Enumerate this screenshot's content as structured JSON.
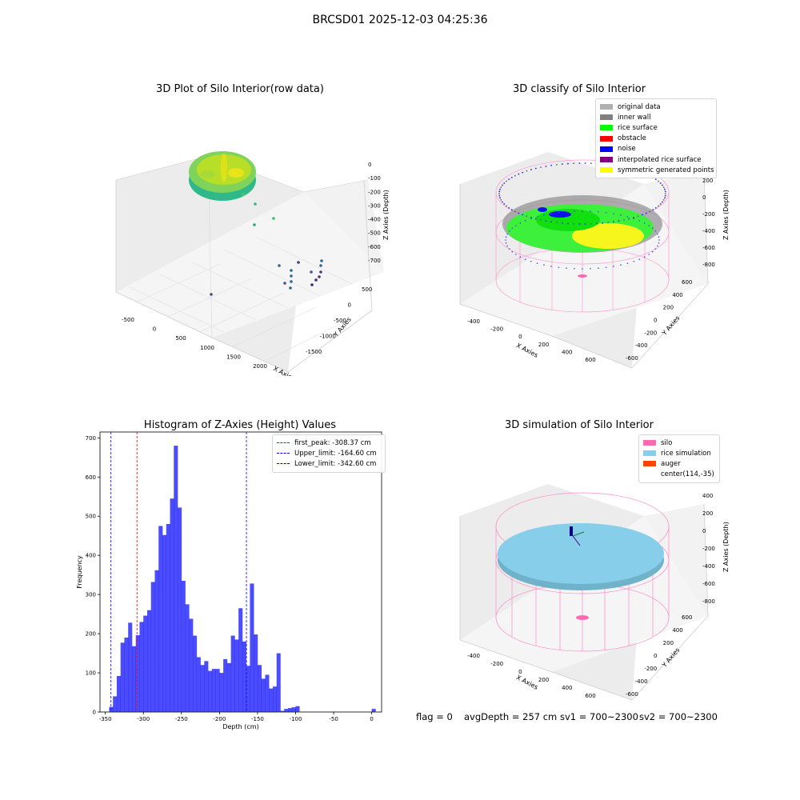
{
  "figure": {
    "suptitle": "BRCSD01 2025-12-03 04:25:36"
  },
  "panels": {
    "raw": {
      "title": "3D Plot of Silo Interior(row data)",
      "xlabel": "X Axies",
      "ylabel": "Y Axies",
      "zlabel": "Z Axies (Depth)",
      "x_ticks": [
        "-500",
        "0",
        "500",
        "1000",
        "1500",
        "2000"
      ],
      "y_ticks": [
        "500",
        "0",
        "-500",
        "-1000",
        "-1500"
      ],
      "z_ticks": [
        "0",
        "-100",
        "-200",
        "-300",
        "-400",
        "-500",
        "-600",
        "-700"
      ]
    },
    "classify": {
      "title": "3D classify of Silo Interior",
      "xlabel": "X Axies",
      "ylabel": "Y Axies",
      "zlabel": "Z Axies (Depth)",
      "x_ticks": [
        "-400",
        "-200",
        "0",
        "200",
        "400",
        "600"
      ],
      "y_ticks": [
        "600",
        "400",
        "200",
        "0",
        "-200",
        "-400",
        "-600"
      ],
      "z_ticks": [
        "200",
        "0",
        "-200",
        "-400",
        "-600",
        "-800"
      ],
      "legend": [
        {
          "label": "original data",
          "color": "#b0b0b0"
        },
        {
          "label": "inner wall",
          "color": "#808080"
        },
        {
          "label": "rice surface",
          "color": "#00ff00"
        },
        {
          "label": "obstacle",
          "color": "#ff0000"
        },
        {
          "label": "noise",
          "color": "#0000ff"
        },
        {
          "label": "interpolated rice surface",
          "color": "#800080"
        },
        {
          "label": "symmetric generated points",
          "color": "#ffff00"
        }
      ]
    },
    "simulation": {
      "title": "3D simulation of Silo Interior",
      "xlabel": "X Axies",
      "ylabel": "Y Axies",
      "zlabel": "Z Axies (Depth)",
      "x_ticks": [
        "-400",
        "-200",
        "0",
        "200",
        "400",
        "600"
      ],
      "y_ticks": [
        "600",
        "400",
        "200",
        "0",
        "-200",
        "-400",
        "-600"
      ],
      "z_ticks": [
        "400",
        "200",
        "0",
        "-200",
        "-400",
        "-600",
        "-800"
      ],
      "legend": [
        {
          "label": "silo",
          "color": "#ff69b4"
        },
        {
          "label": "rice simulation",
          "color": "#87ceeb"
        },
        {
          "label": "auger",
          "color": "#ff4500"
        },
        {
          "label": "center(114,-35)",
          "color": ""
        }
      ]
    }
  },
  "status": {
    "flag": "flag = 0",
    "avg_depth": "avgDepth = 257 cm",
    "sv1": "sv1 = 700~2300",
    "sv2": "sv2 = 700~2300"
  },
  "chart_data": {
    "type": "bar",
    "title": "Histogram of Z-Axies (Height) Values",
    "xlabel": "Depth (cm)",
    "ylabel": "Frequency",
    "xlim": [
      -357,
      13
    ],
    "ylim": [
      0,
      715
    ],
    "x_ticks": [
      -350,
      -300,
      -250,
      -200,
      -150,
      -100,
      -50,
      0
    ],
    "y_ticks": [
      0,
      100,
      200,
      300,
      400,
      500,
      600,
      700
    ],
    "bin_width": 5,
    "bin_starts": [
      -345,
      -340,
      -335,
      -330,
      -325,
      -320,
      -315,
      -310,
      -305,
      -300,
      -295,
      -290,
      -285,
      -280,
      -275,
      -270,
      -265,
      -260,
      -255,
      -250,
      -245,
      -240,
      -235,
      -230,
      -225,
      -220,
      -215,
      -210,
      -205,
      -200,
      -195,
      -190,
      -185,
      -180,
      -175,
      -170,
      -165,
      -160,
      -155,
      -150,
      -145,
      -140,
      -135,
      -130,
      -125,
      -120,
      -115,
      -110,
      -105,
      -100,
      -95,
      -90,
      -85,
      -80,
      -75,
      -70,
      -65,
      -60,
      -55,
      -50,
      -45,
      -40,
      -35,
      -30,
      -25,
      -20,
      -15,
      -10,
      -5,
      0
    ],
    "values": [
      13,
      40,
      92,
      177,
      190,
      228,
      168,
      196,
      230,
      246,
      260,
      332,
      362,
      475,
      452,
      480,
      545,
      680,
      522,
      335,
      275,
      238,
      195,
      140,
      120,
      130,
      105,
      110,
      110,
      100,
      135,
      125,
      195,
      185,
      265,
      180,
      118,
      328,
      198,
      120,
      85,
      95,
      60,
      65,
      150,
      3,
      8,
      10,
      12,
      15,
      0,
      0,
      0,
      0,
      0,
      0,
      0,
      0,
      0,
      0,
      0,
      0,
      0,
      0,
      0,
      0,
      0,
      0,
      0,
      8
    ],
    "bar_color": "#0000ff",
    "lines": [
      {
        "label": "first_peak: -308.37 cm",
        "x": -308.37,
        "color": "#ff0000"
      },
      {
        "label": "Upper_limit: -164.60 cm",
        "x": -164.6,
        "color": "#0000ff"
      },
      {
        "label": "Lower_limit: -342.60 cm",
        "x": -342.6,
        "color": "#0000ff"
      }
    ],
    "legend_position": "top-right"
  }
}
